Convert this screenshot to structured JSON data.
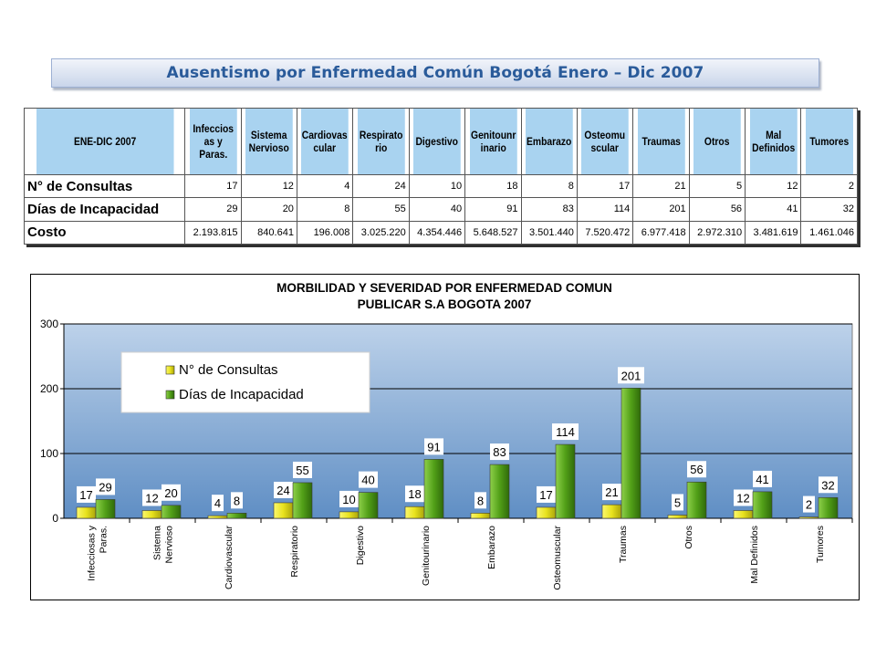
{
  "header": {
    "title": "Ausentismo por Enfermedad Común Bogotá Enero – Dic 2007"
  },
  "table": {
    "corner": "ENE-DIC 2007",
    "columns": [
      [
        "Infeccios",
        "as y",
        "Paras."
      ],
      [
        "Sistema",
        "Nervioso"
      ],
      [
        "Cardiovas",
        "cular"
      ],
      [
        "Respirato",
        "rio"
      ],
      [
        "Digestivo"
      ],
      [
        "Genitounr",
        "inario"
      ],
      [
        "Embarazo"
      ],
      [
        "Osteomu",
        "scular"
      ],
      [
        "Traumas"
      ],
      [
        "Otros"
      ],
      [
        "Mal",
        "Definidos"
      ],
      [
        "Tumores"
      ]
    ],
    "rows": [
      {
        "label": "N° de Consultas",
        "values": [
          "17",
          "12",
          "4",
          "24",
          "10",
          "18",
          "8",
          "17",
          "21",
          "5",
          "12",
          "2"
        ]
      },
      {
        "label": "Días de Incapacidad",
        "values": [
          "29",
          "20",
          "8",
          "55",
          "40",
          "91",
          "83",
          "114",
          "201",
          "56",
          "41",
          "32"
        ]
      },
      {
        "label": "Costo",
        "values": [
          "2.193.815",
          "840.641",
          "196.008",
          "3.025.220",
          "4.354.446",
          "5.648.527",
          "3.501.440",
          "7.520.472",
          "6.977.418",
          "2.972.310",
          "3.481.619",
          "1.461.046"
        ]
      }
    ]
  },
  "chart_data": {
    "type": "bar",
    "title": [
      "MORBILIDAD Y SEVERIDAD POR ENFERMEDAD COMUN",
      "PUBLICAR S.A  BOGOTA  2007"
    ],
    "categories": [
      [
        "Infecciosas y",
        "Paras."
      ],
      [
        "Sistema",
        "Nervioso"
      ],
      [
        "Cardiovascular"
      ],
      [
        "Respiratorio"
      ],
      [
        "Digestivo"
      ],
      [
        "Genitourinario"
      ],
      [
        "Embarazo"
      ],
      [
        "Osteomuscular"
      ],
      [
        "Traumas"
      ],
      [
        "Otros"
      ],
      [
        "Mal Definidos"
      ],
      [
        "Tumores"
      ]
    ],
    "series": [
      {
        "name": "N° de Consultas",
        "values": [
          17,
          12,
          4,
          24,
          10,
          18,
          8,
          17,
          21,
          5,
          12,
          2
        ],
        "color": "#e8e21e"
      },
      {
        "name": "Días de Incapacidad",
        "values": [
          29,
          20,
          8,
          55,
          40,
          91,
          83,
          114,
          201,
          56,
          41,
          32
        ],
        "color": "#52a018"
      }
    ],
    "ylim": [
      0,
      300
    ],
    "yticks": [
      "0",
      "100",
      "200",
      "300"
    ],
    "grid": true,
    "legend_position": "top-left"
  }
}
